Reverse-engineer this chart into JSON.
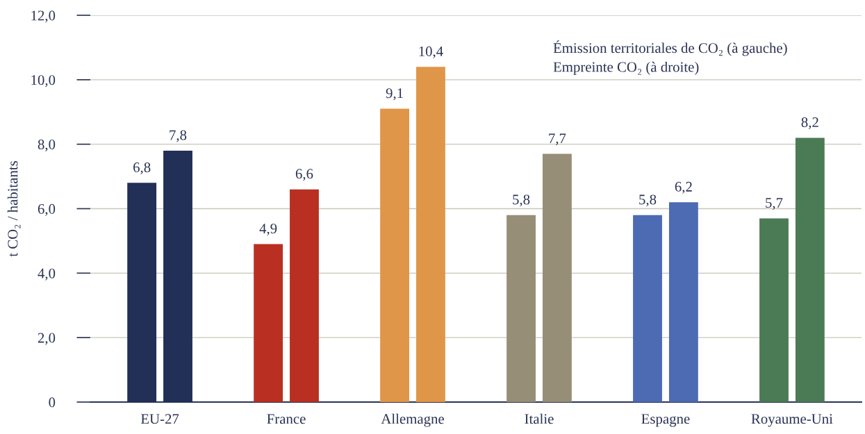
{
  "chart_data": {
    "type": "bar",
    "ylabel": "t CO₂ / habitants",
    "categories": [
      "EU-27",
      "France",
      "Allemagne",
      "Italie",
      "Espagne",
      "Royaume-Uni"
    ],
    "series": [
      {
        "colors": [
          "#222f57",
          "#b93022",
          "#e09648",
          "#968e77",
          "#4d6bb3",
          "#4b7b55"
        ],
        "values": [
          6.8,
          4.9,
          9.1,
          5.8,
          5.8,
          5.7
        ],
        "value_labels": [
          "6,8",
          "4,9",
          "9,1",
          "5,8",
          "5,8",
          "5,7"
        ]
      },
      {
        "colors": [
          "#222f57",
          "#b93022",
          "#e09648",
          "#968e77",
          "#4d6bb3",
          "#4b7b55"
        ],
        "values": [
          7.8,
          6.6,
          10.4,
          7.7,
          6.2,
          8.2
        ],
        "value_labels": [
          "7,8",
          "6,6",
          "10,4",
          "7,7",
          "6,2",
          "8,2"
        ]
      }
    ],
    "ylim": [
      0,
      12
    ],
    "yticks": [
      0,
      {
        "value": 2,
        "label": "2,0"
      },
      {
        "value": 4,
        "label": "4,0"
      },
      {
        "value": 6,
        "label": "6,0"
      },
      {
        "value": 8,
        "label": "8,0"
      },
      {
        "value": 10,
        "label": "10,0"
      },
      {
        "value": 12,
        "label": "12,0"
      }
    ],
    "grid": "y",
    "annotations": [
      "Émission territoriales de CO₂ (à gauche)",
      "Empreinte CO₂ (à droite)"
    ]
  }
}
